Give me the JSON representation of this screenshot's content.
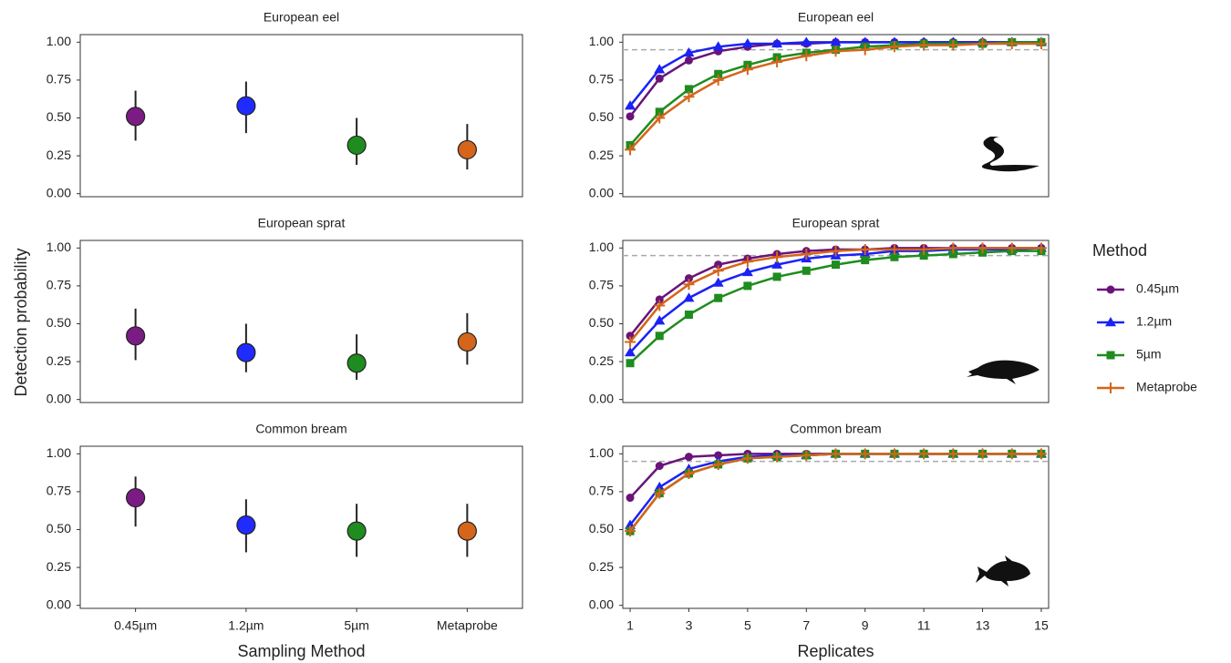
{
  "ylabel": "Detection probability",
  "legend": {
    "title": "Method",
    "position": "right"
  },
  "chart_data": [
    {
      "type": "pointrange",
      "title": "European eel",
      "colors": [
        "#7b1b84",
        "#1f2bff",
        "#1e8c1e",
        "#d4651a"
      ],
      "values": [
        0.51,
        0.58,
        0.32,
        0.29
      ],
      "lower": [
        0.35,
        0.4,
        0.19,
        0.16
      ],
      "upper": [
        0.68,
        0.74,
        0.5,
        0.46
      ],
      "ylim": [
        -0.02,
        1.05
      ],
      "yticks": [
        {
          "value": 0,
          "label": "0.00"
        },
        {
          "value": 0.25,
          "label": "0.25"
        },
        {
          "value": 0.5,
          "label": "0.50"
        },
        {
          "value": 0.75,
          "label": "0.75"
        },
        {
          "value": 1,
          "label": "1.00"
        }
      ]
    },
    {
      "type": "line",
      "title": "European eel",
      "x": [
        1,
        2,
        3,
        4,
        5,
        6,
        7,
        8,
        9,
        10,
        11,
        12,
        13,
        14,
        15
      ],
      "xlim": [
        0.75,
        15.25
      ],
      "threshold": 0.95,
      "series": [
        {
          "name": "0.45µm",
          "color": "#6a1479",
          "marker": "circle",
          "values": [
            0.51,
            0.76,
            0.88,
            0.94,
            0.97,
            0.99,
            0.99,
            1.0,
            1.0,
            1.0,
            1.0,
            1.0,
            1.0,
            1.0,
            1.0
          ]
        },
        {
          "name": "1.2µm",
          "color": "#1a22f5",
          "marker": "triangle",
          "values": [
            0.58,
            0.82,
            0.93,
            0.97,
            0.99,
            0.99,
            1.0,
            1.0,
            1.0,
            1.0,
            1.0,
            1.0,
            1.0,
            1.0,
            1.0
          ]
        },
        {
          "name": "5µm",
          "color": "#1e8c1e",
          "marker": "square",
          "values": [
            0.32,
            0.54,
            0.69,
            0.79,
            0.85,
            0.9,
            0.93,
            0.95,
            0.97,
            0.98,
            0.99,
            0.99,
            0.99,
            1.0,
            1.0
          ]
        },
        {
          "name": "Metaprobe",
          "color": "#d4651a",
          "marker": "plus",
          "values": [
            0.29,
            0.5,
            0.64,
            0.75,
            0.82,
            0.87,
            0.91,
            0.94,
            0.95,
            0.97,
            0.98,
            0.98,
            0.99,
            0.99,
            0.99
          ]
        }
      ],
      "ylim": [
        -0.02,
        1.05
      ],
      "yticks": [
        {
          "value": 0,
          "label": "0.00"
        },
        {
          "value": 0.25,
          "label": "0.25"
        },
        {
          "value": 0.5,
          "label": "0.50"
        },
        {
          "value": 0.75,
          "label": "0.75"
        },
        {
          "value": 1,
          "label": "1.00"
        }
      ]
    },
    {
      "type": "pointrange",
      "title": "European sprat",
      "colors": [
        "#7b1b84",
        "#1f2bff",
        "#1e8c1e",
        "#d4651a"
      ],
      "values": [
        0.42,
        0.31,
        0.24,
        0.38
      ],
      "lower": [
        0.26,
        0.18,
        0.13,
        0.23
      ],
      "upper": [
        0.6,
        0.5,
        0.43,
        0.57
      ],
      "ylim": [
        -0.02,
        1.05
      ],
      "yticks": [
        {
          "value": 0,
          "label": "0.00"
        },
        {
          "value": 0.25,
          "label": "0.25"
        },
        {
          "value": 0.5,
          "label": "0.50"
        },
        {
          "value": 0.75,
          "label": "0.75"
        },
        {
          "value": 1,
          "label": "1.00"
        }
      ]
    },
    {
      "type": "line",
      "title": "European sprat",
      "x": [
        1,
        2,
        3,
        4,
        5,
        6,
        7,
        8,
        9,
        10,
        11,
        12,
        13,
        14,
        15
      ],
      "xlim": [
        0.75,
        15.25
      ],
      "threshold": 0.95,
      "series": [
        {
          "color": "#6a1479",
          "marker": "circle",
          "values": [
            0.42,
            0.66,
            0.8,
            0.89,
            0.93,
            0.96,
            0.98,
            0.99,
            0.99,
            1.0,
            1.0,
            1.0,
            1.0,
            1.0,
            1.0
          ]
        },
        {
          "color": "#1a22f5",
          "marker": "triangle",
          "values": [
            0.31,
            0.52,
            0.67,
            0.77,
            0.84,
            0.89,
            0.93,
            0.95,
            0.96,
            0.98,
            0.98,
            0.99,
            0.99,
            0.99,
            1.0
          ]
        },
        {
          "color": "#1e8c1e",
          "marker": "square",
          "values": [
            0.24,
            0.42,
            0.56,
            0.67,
            0.75,
            0.81,
            0.85,
            0.89,
            0.92,
            0.94,
            0.95,
            0.96,
            0.97,
            0.98,
            0.98
          ]
        },
        {
          "color": "#d4651a",
          "marker": "plus",
          "values": [
            0.38,
            0.62,
            0.76,
            0.85,
            0.91,
            0.94,
            0.96,
            0.98,
            0.99,
            0.99,
            0.99,
            1.0,
            1.0,
            1.0,
            1.0
          ]
        }
      ],
      "ylim": [
        -0.02,
        1.05
      ],
      "yticks": [
        {
          "value": 0,
          "label": "0.00"
        },
        {
          "value": 0.25,
          "label": "0.25"
        },
        {
          "value": 0.5,
          "label": "0.50"
        },
        {
          "value": 0.75,
          "label": "0.75"
        },
        {
          "value": 1,
          "label": "1.00"
        }
      ]
    },
    {
      "type": "pointrange",
      "title": "Common bream",
      "xlabel": "Sampling Method",
      "categories": [
        "0.45µm",
        "1.2µm",
        "5µm",
        "Metaprobe"
      ],
      "colors": [
        "#7b1b84",
        "#1f2bff",
        "#1e8c1e",
        "#d4651a"
      ],
      "values": [
        0.71,
        0.53,
        0.49,
        0.49
      ],
      "lower": [
        0.52,
        0.35,
        0.32,
        0.32
      ],
      "upper": [
        0.85,
        0.7,
        0.67,
        0.67
      ],
      "ylim": [
        -0.02,
        1.05
      ],
      "yticks": [
        {
          "value": 0,
          "label": "0.00"
        },
        {
          "value": 0.25,
          "label": "0.25"
        },
        {
          "value": 0.5,
          "label": "0.50"
        },
        {
          "value": 0.75,
          "label": "0.75"
        },
        {
          "value": 1,
          "label": "1.00"
        }
      ]
    },
    {
      "type": "line",
      "title": "Common bream",
      "xlabel": "Replicates",
      "x": [
        1,
        2,
        3,
        4,
        5,
        6,
        7,
        8,
        9,
        10,
        11,
        12,
        13,
        14,
        15
      ],
      "xlim": [
        0.75,
        15.25
      ],
      "xticks": [
        1,
        3,
        5,
        7,
        9,
        11,
        13,
        15
      ],
      "threshold": 0.95,
      "series": [
        {
          "color": "#6a1479",
          "marker": "circle",
          "values": [
            0.71,
            0.92,
            0.98,
            0.99,
            1.0,
            1.0,
            1.0,
            1.0,
            1.0,
            1.0,
            1.0,
            1.0,
            1.0,
            1.0,
            1.0
          ]
        },
        {
          "color": "#1a22f5",
          "marker": "triangle",
          "values": [
            0.53,
            0.78,
            0.9,
            0.95,
            0.98,
            0.99,
            0.99,
            1.0,
            1.0,
            1.0,
            1.0,
            1.0,
            1.0,
            1.0,
            1.0
          ]
        },
        {
          "color": "#1e8c1e",
          "marker": "square",
          "values": [
            0.49,
            0.74,
            0.87,
            0.93,
            0.97,
            0.98,
            0.99,
            1.0,
            1.0,
            1.0,
            1.0,
            1.0,
            1.0,
            1.0,
            1.0
          ]
        },
        {
          "color": "#d4651a",
          "marker": "plus",
          "values": [
            0.49,
            0.74,
            0.87,
            0.93,
            0.97,
            0.98,
            0.99,
            1.0,
            1.0,
            1.0,
            1.0,
            1.0,
            1.0,
            1.0,
            1.0
          ]
        }
      ],
      "ylim": [
        -0.02,
        1.05
      ],
      "yticks": [
        {
          "value": 0,
          "label": "0.00"
        },
        {
          "value": 0.25,
          "label": "0.25"
        },
        {
          "value": 0.5,
          "label": "0.50"
        },
        {
          "value": 0.75,
          "label": "0.75"
        },
        {
          "value": 1,
          "label": "1.00"
        }
      ]
    }
  ]
}
